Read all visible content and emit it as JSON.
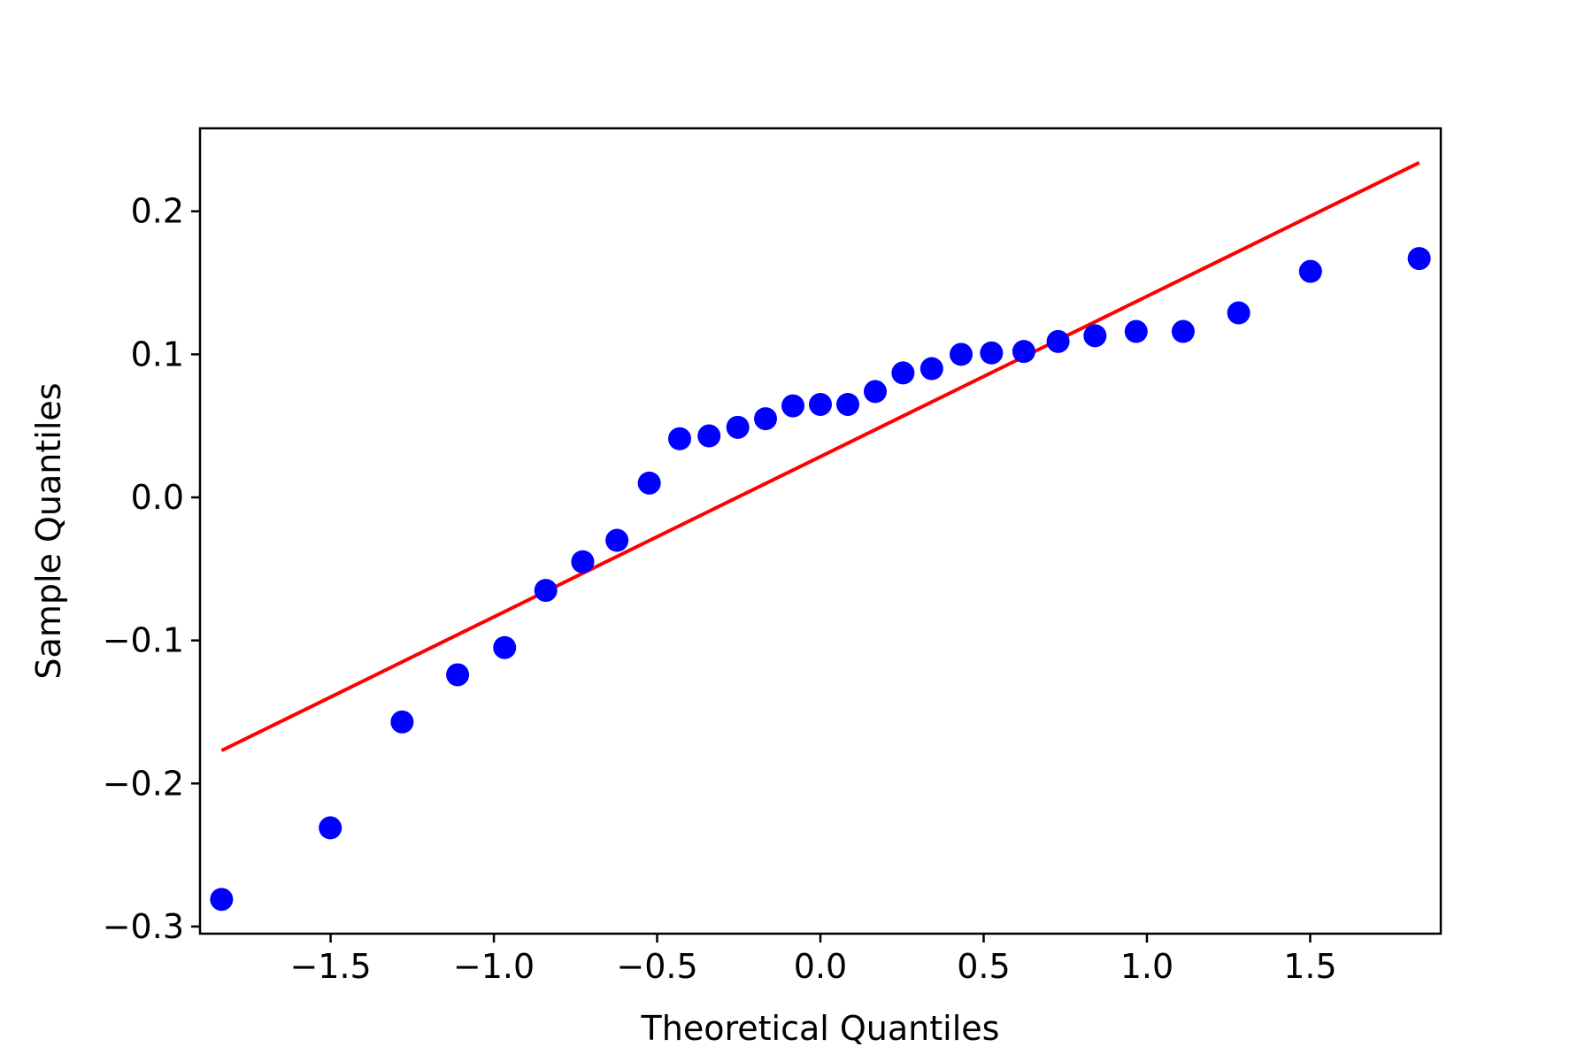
{
  "chart_data": {
    "type": "scatter",
    "title": "",
    "xlabel": "Theoretical Quantiles",
    "ylabel": "Sample Quantiles",
    "xlim": [
      -1.9,
      1.9
    ],
    "ylim": [
      -0.305,
      0.258
    ],
    "x_ticks": [
      -1.5,
      -1.0,
      -0.5,
      0.0,
      0.5,
      1.0,
      1.5
    ],
    "x_tick_labels": [
      "−1.5",
      "−1.0",
      "−0.5",
      "0.0",
      "0.5",
      "1.0",
      "1.5"
    ],
    "y_ticks": [
      -0.3,
      -0.2,
      -0.1,
      0.0,
      0.1,
      0.2
    ],
    "y_tick_labels": [
      "−0.3",
      "−0.2",
      "−0.1",
      "0.0",
      "0.1",
      "0.2"
    ],
    "grid": false,
    "points": {
      "color": "#0000ff",
      "x": [
        -1.834,
        -1.501,
        -1.281,
        -1.111,
        -0.967,
        -0.841,
        -0.728,
        -0.623,
        -0.524,
        -0.431,
        -0.341,
        -0.253,
        -0.168,
        -0.084,
        0.0,
        0.084,
        0.168,
        0.253,
        0.341,
        0.431,
        0.524,
        0.623,
        0.728,
        0.841,
        0.967,
        1.111,
        1.281,
        1.501,
        1.834
      ],
      "y": [
        -0.281,
        -0.231,
        -0.157,
        -0.124,
        -0.105,
        -0.065,
        -0.045,
        -0.03,
        0.01,
        0.041,
        0.043,
        0.049,
        0.055,
        0.064,
        0.065,
        0.065,
        0.074,
        0.087,
        0.09,
        0.1,
        0.101,
        0.102,
        0.109,
        0.113,
        0.116,
        0.116,
        0.129,
        0.158,
        0.167
      ]
    },
    "reference_line": {
      "color": "#ff0000",
      "x": [
        -1.834,
        1.834
      ],
      "y": [
        -0.177,
        0.234
      ]
    }
  }
}
